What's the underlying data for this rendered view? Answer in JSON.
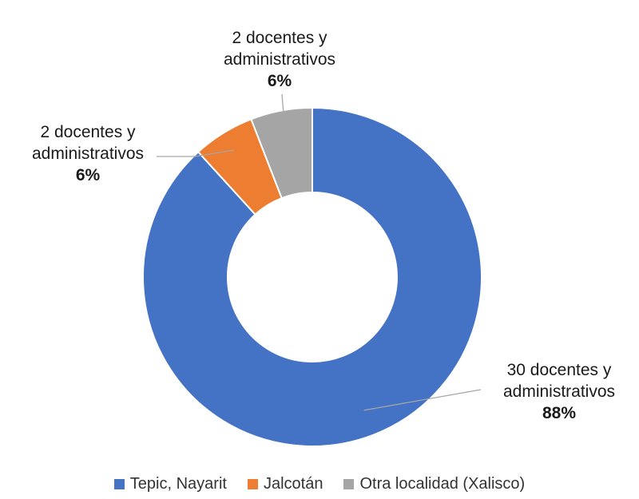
{
  "chart_data": {
    "type": "pie",
    "variant": "donut",
    "categories": [
      "Tepic, Nayarit",
      "Jalcotán",
      "Otra localidad (Xalisco)"
    ],
    "values": [
      30,
      2,
      2
    ],
    "percent_labels": [
      "88%",
      "6%",
      "6%"
    ],
    "data_labels": [
      "30 docentes y administrativos",
      "2 docentes y administrativos",
      "2 docentes y administrativos"
    ],
    "colors": [
      "#4472C4",
      "#ED7D31",
      "#A5A5A5"
    ],
    "legend_position": "bottom",
    "title": ""
  }
}
